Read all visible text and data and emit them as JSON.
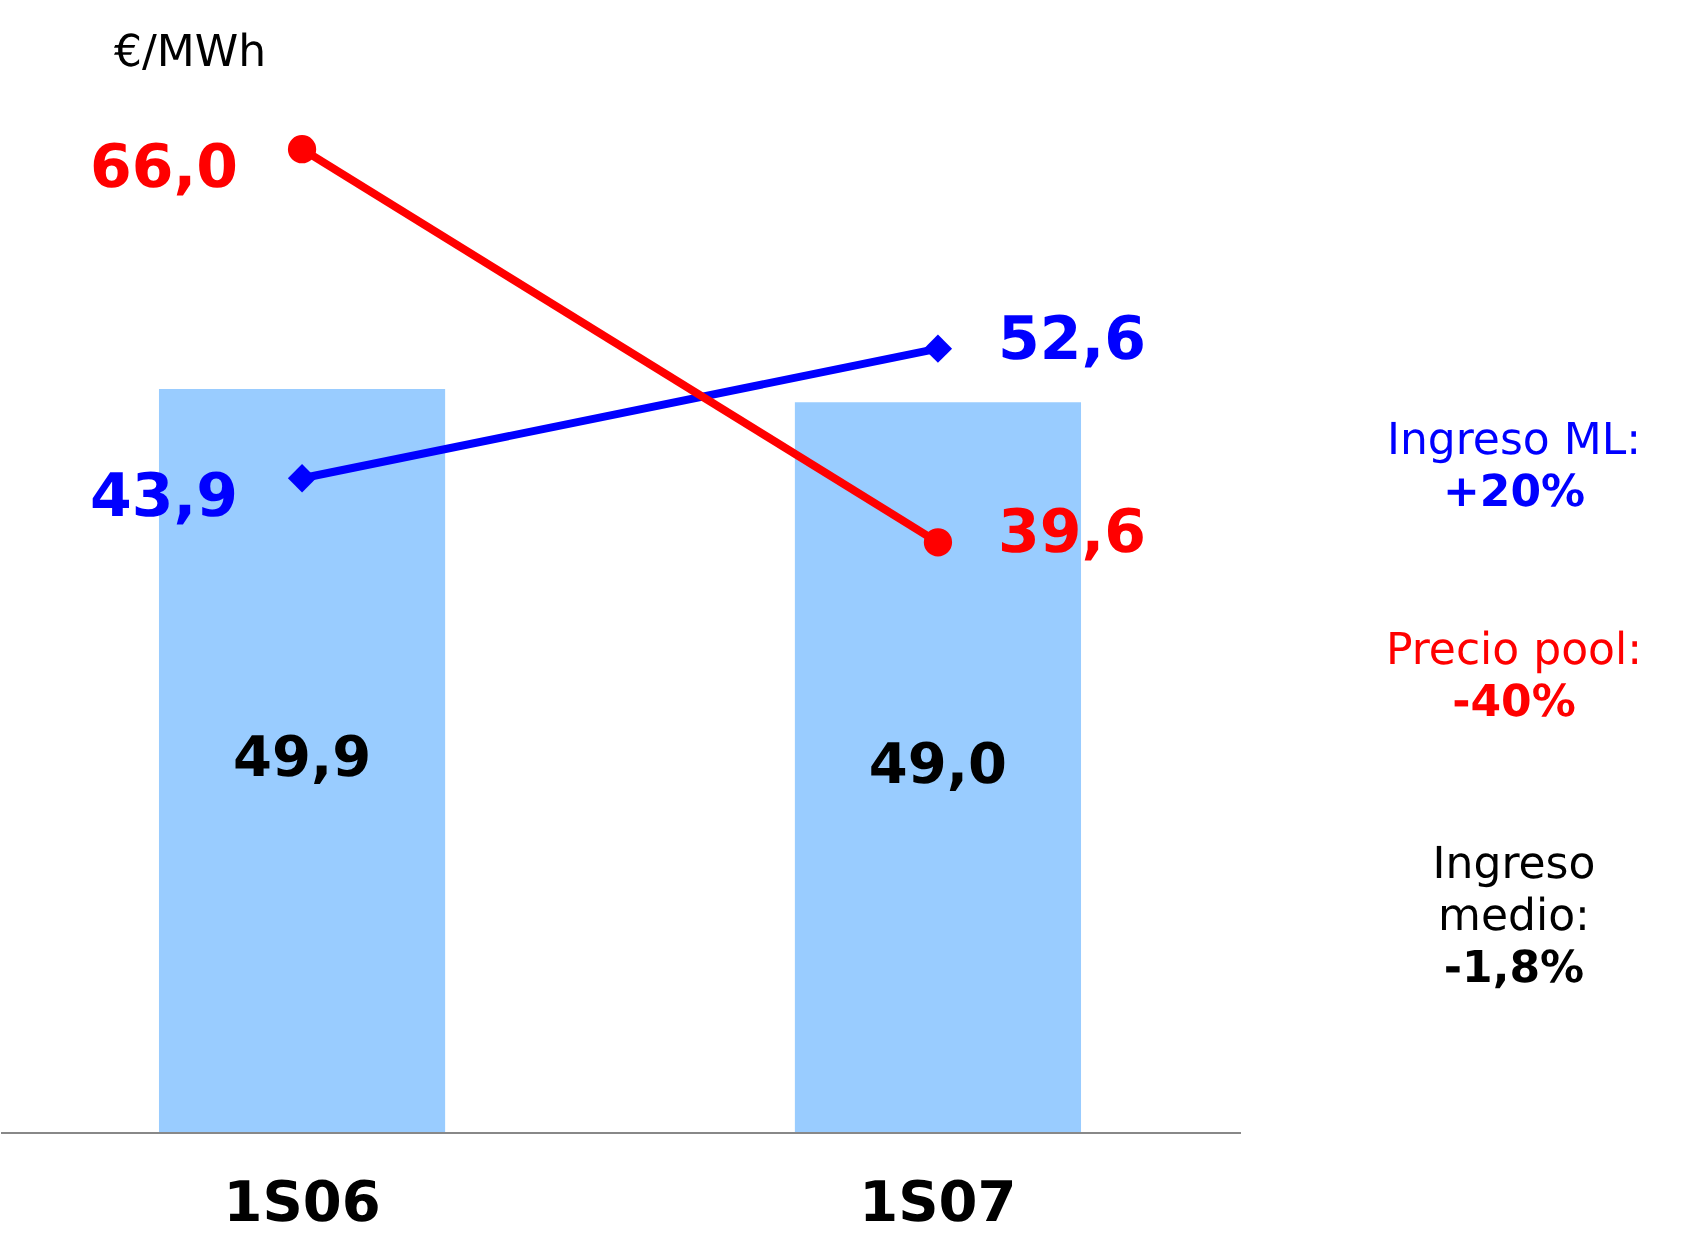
{
  "chart_data": {
    "type": "bar",
    "ylabel": "€/MWh",
    "categories": [
      "1S06",
      "1S07"
    ],
    "data_labels": true,
    "grid": false,
    "series": [
      {
        "color": "#99ccff",
        "values": [
          49.9,
          49.0
        ],
        "value_labels": [
          "49,9",
          "49,0"
        ]
      },
      {
        "type": "line",
        "color": "#0000ff",
        "marker": "diamond",
        "values": [
          43.9,
          52.6
        ],
        "value_labels": [
          "43,9",
          "52,6"
        ]
      },
      {
        "type": "line",
        "color": "#ff0000",
        "marker": "circle",
        "values": [
          66.0,
          39.6
        ],
        "value_labels": [
          "66,0",
          "39,6"
        ]
      }
    ],
    "annotations": [
      "Ingreso ML:\n+20%",
      "Precio pool:\n-40%",
      "Ingreso\nmedio:\n-1,8%"
    ]
  }
}
